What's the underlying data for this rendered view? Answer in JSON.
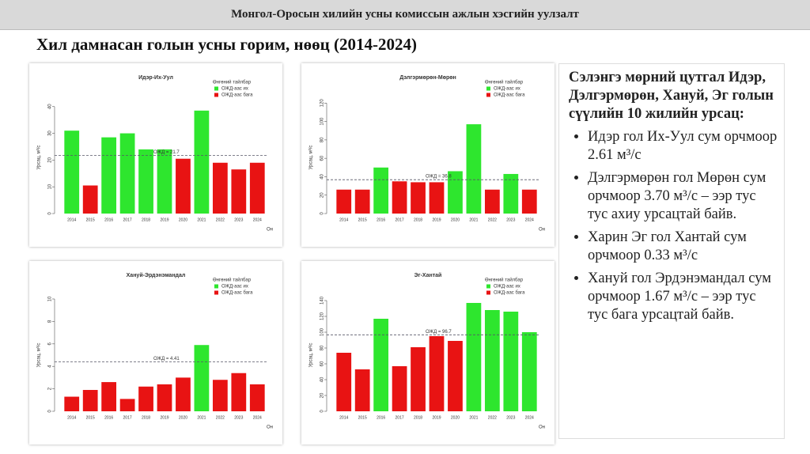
{
  "header": "Монгол-Оросын хилийн усны комиссын ажлын хэсгийн уулзалт",
  "title": "Хил дамнасан голын усны горим, нөөц (2014-2024)",
  "summary": {
    "heading": "Сэлэнгэ мөрний цутгал Идэр, Дэлгэрмөрөн, Хануй, Эг голын сүүлийн 10 жилийн урсац:",
    "bullets": [
      "Идэр гол Их-Уул сум орчмоор 2.61 м³/с",
      "Дэлгэрмөрөн гол Мөрөн сум орчмоор 3.70 м³/с – ээр тус тус ахиу урсацтай байв.",
      "Харин Эг гол Хантай сум орчмоор 0.33 м³/с",
      "Хануй гол Эрдэнэмандал сум орчмоор 1.67 м³/с – ээр тус тус бага урсацтай байв."
    ]
  },
  "chart_data": [
    {
      "type": "bar",
      "title": "Идэр-Их-Уул",
      "xlabel": "Он",
      "ylabel": "Урсац, м³/с",
      "categories": [
        "2014",
        "2015",
        "2016",
        "2017",
        "2018",
        "2019",
        "2020",
        "2021",
        "2022",
        "2023",
        "2024"
      ],
      "values": [
        31,
        10.5,
        28.5,
        30,
        24,
        24,
        20.5,
        38.5,
        19,
        16.5,
        19
      ],
      "ylim": [
        0,
        42
      ],
      "yticks": [
        0,
        10,
        20,
        30,
        40
      ],
      "reference": {
        "value": 21.7,
        "label": "ОЖД = 21.7"
      },
      "legend_title": "Өнгөний тайлбар",
      "legend": [
        {
          "name": "ОЖД-аас их",
          "color": "#2ee62e"
        },
        {
          "name": "ОЖД-аас бага",
          "color": "#e81313"
        }
      ]
    },
    {
      "type": "bar",
      "title": "Дэлгэрмөрөн-Мөрөн",
      "xlabel": "Он",
      "ylabel": "Урсац, м³/с",
      "categories": [
        "2014",
        "2015",
        "2016",
        "2017",
        "2018",
        "2019",
        "2020",
        "2021",
        "2022",
        "2023",
        "2024"
      ],
      "values": [
        26,
        26,
        50,
        35,
        34,
        34,
        46,
        97,
        26,
        43,
        26
      ],
      "ylim": [
        0,
        122
      ],
      "yticks": [
        0,
        20,
        40,
        60,
        80,
        100,
        120
      ],
      "reference": {
        "value": 36.8,
        "label": "ОЖД = 36.8"
      },
      "legend_title": "Өнгөний тайлбар",
      "legend": [
        {
          "name": "ОЖД-аас их",
          "color": "#2ee62e"
        },
        {
          "name": "ОЖД-аас бага",
          "color": "#e81313"
        }
      ]
    },
    {
      "type": "bar",
      "title": "Хануй-Эрдэнэмандал",
      "xlabel": "Он",
      "ylabel": "Урсац, м³/с",
      "categories": [
        "2014",
        "2015",
        "2016",
        "2017",
        "2018",
        "2019",
        "2020",
        "2021",
        "2022",
        "2023",
        "2024"
      ],
      "values": [
        1.3,
        1.9,
        2.6,
        1.1,
        2.2,
        2.4,
        3.0,
        5.9,
        2.8,
        3.4,
        2.4
      ],
      "ylim": [
        0,
        10
      ],
      "yticks": [
        0,
        2,
        4,
        6,
        8,
        10
      ],
      "reference": {
        "value": 4.41,
        "label": "ОЖД = 4.41"
      },
      "legend_title": "Өнгөний тайлбар",
      "legend": [
        {
          "name": "ОЖД-аас их",
          "color": "#2ee62e"
        },
        {
          "name": "ОЖД-аас бага",
          "color": "#e81313"
        }
      ]
    },
    {
      "type": "bar",
      "title": "Эг-Хантай",
      "xlabel": "Он",
      "ylabel": "Урсац, м³/с",
      "categories": [
        "2014",
        "2015",
        "2016",
        "2017",
        "2018",
        "2019",
        "2020",
        "2021",
        "2022",
        "2023",
        "2024"
      ],
      "values": [
        74,
        53,
        117,
        57,
        81,
        95,
        89,
        137,
        128,
        126,
        100
      ],
      "ylim": [
        0,
        142
      ],
      "yticks": [
        0,
        20,
        40,
        60,
        80,
        100,
        120,
        140
      ],
      "reference": {
        "value": 96.7,
        "label": "ОЖД = 96.7"
      },
      "legend_title": "Өнгөний тайлбар",
      "legend": [
        {
          "name": "ОЖД-аас их",
          "color": "#2ee62e"
        },
        {
          "name": "ОЖД-аас бага",
          "color": "#e81313"
        }
      ]
    }
  ]
}
